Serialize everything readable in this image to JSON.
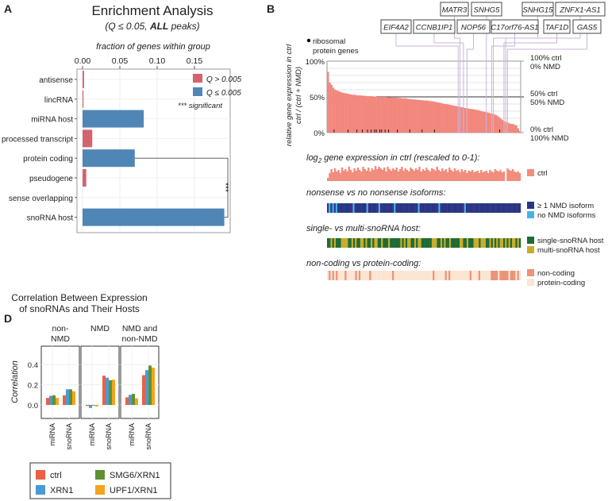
{
  "panel_labels": {
    "a": "A",
    "b": "B",
    "d": "D"
  },
  "chart_data": [
    {
      "type": "bar",
      "orientation": "horizontal",
      "title": "Enrichment Analysis",
      "subtitle_pre": "(Q ≤ 0.05, ",
      "subtitle_bold": "ALL",
      "subtitle_post": " peaks)",
      "xlabel": "fraction of genes within group",
      "xticks": [
        "0.00",
        "0.05",
        "0.10",
        "0.15"
      ],
      "xtick_values": [
        0,
        0.05,
        0.1,
        0.15
      ],
      "xlim": [
        -0.002,
        0.196
      ],
      "categories": [
        "antisense",
        "lincRNA",
        "miRNA host",
        "processed transcript",
        "protein coding",
        "pseudogene",
        "sense overlapping",
        "snoRNA host"
      ],
      "values": [
        0.002,
        0.001,
        0.082,
        0.013,
        0.07,
        0.005,
        0.0,
        0.19
      ],
      "groups": [
        "gt",
        "gt",
        "le",
        "gt",
        "le",
        "gt",
        "le",
        "le"
      ],
      "legend": [
        {
          "key": "gt",
          "label": "Q > 0.005",
          "color": "#d4636d"
        },
        {
          "key": "le",
          "label": "Q ≤ 0.005",
          "color": "#4f86b6"
        }
      ],
      "legend_note": "*** significant",
      "legend_position": "top-right",
      "annotation": {
        "from": "protein coding",
        "to": "snoRNA host",
        "label": "***"
      }
    },
    {
      "type": "bar",
      "ylabel_line1": "relative gene expression in ctrl",
      "ylabel_line2": "ctrl / (ctrl + NMD)",
      "yticks": [
        "100%",
        "50%",
        "0%"
      ],
      "right_labels": [
        [
          "100% ctrl",
          "0% NMD"
        ],
        [
          "50% ctrl",
          "50% NMD"
        ],
        [
          "0% ctrl",
          "100% NMD"
        ]
      ],
      "ylim": [
        0,
        1
      ],
      "ribosomal_note_line1": "ribosomal",
      "ribosomal_note_line2": "protein genes",
      "values": [
        0.85,
        0.7,
        0.67,
        0.63,
        0.6,
        0.59,
        0.58,
        0.57,
        0.56,
        0.555,
        0.55,
        0.545,
        0.54,
        0.535,
        0.53,
        0.53,
        0.525,
        0.52,
        0.52,
        0.52,
        0.515,
        0.515,
        0.51,
        0.51,
        0.51,
        0.51,
        0.505,
        0.505,
        0.5,
        0.5,
        0.5,
        0.5,
        0.5,
        0.5,
        0.495,
        0.495,
        0.49,
        0.49,
        0.49,
        0.49,
        0.485,
        0.485,
        0.48,
        0.48,
        0.48,
        0.475,
        0.47,
        0.47,
        0.465,
        0.465,
        0.46,
        0.46,
        0.455,
        0.455,
        0.45,
        0.45,
        0.45,
        0.445,
        0.44,
        0.44,
        0.435,
        0.43,
        0.425,
        0.42,
        0.415,
        0.41,
        0.4,
        0.4,
        0.395,
        0.39,
        0.385,
        0.38,
        0.375,
        0.37,
        0.365,
        0.36,
        0.355,
        0.35,
        0.345,
        0.34,
        0.335,
        0.33,
        0.33,
        0.325,
        0.32,
        0.315,
        0.31,
        0.3,
        0.295,
        0.29,
        0.285,
        0.28,
        0.27,
        0.265,
        0.26,
        0.25,
        0.24,
        0.22,
        0.2,
        0.18,
        0.16,
        0.15,
        0.14,
        0.13,
        0.12,
        0.12,
        0.11,
        0.1,
        0.06,
        0.02
      ],
      "ribosomal_positions": [
        4,
        12,
        17,
        20,
        23,
        25,
        27,
        28,
        30,
        31,
        33,
        35,
        40,
        47,
        54,
        61,
        98
      ],
      "highlighted_genes": [
        {
          "name": "MATR3",
          "index": 75,
          "row": 1
        },
        {
          "name": "SNHG5",
          "index": 90,
          "row": 1
        },
        {
          "name": "SNHG15",
          "index": 94,
          "row": 1
        },
        {
          "name": "ZNFX1-AS1",
          "index": 101,
          "row": 1
        },
        {
          "name": "EIF4A2",
          "index": 74,
          "row": 2
        },
        {
          "name": "CCNB1IP1",
          "index": 77,
          "row": 2
        },
        {
          "name": "NOP56",
          "index": 79,
          "row": 2
        },
        {
          "name": "C17orf76-AS1",
          "index": 93,
          "row": 2
        },
        {
          "name": "TAF1D",
          "index": 100,
          "row": 2
        },
        {
          "name": "GAS5",
          "index": 102,
          "row": 2
        }
      ],
      "tracks": {
        "expression": {
          "title_pre": "log",
          "title_sub": "2",
          "title_post": " gene expression in ctrl (rescaled to 0-1):",
          "legend": [
            {
              "label": "ctrl",
              "color": "#f28c7c"
            }
          ],
          "values": [
            0.2,
            0.5,
            0.75,
            0.55,
            0.8,
            0.6,
            0.7,
            0.5,
            0.85,
            0.65,
            0.75,
            0.6,
            0.9,
            0.7,
            0.55,
            0.8,
            0.65,
            0.85,
            0.7,
            0.6,
            0.9,
            0.75,
            0.65,
            0.85,
            0.6,
            0.8,
            0.7,
            0.95,
            0.75,
            0.9,
            0.8,
            0.7,
            0.85,
            0.6,
            0.9,
            0.75,
            0.65,
            0.8,
            0.7,
            0.85,
            0.6,
            0.75,
            0.9,
            0.65,
            0.8,
            0.7,
            0.6,
            0.85,
            0.75,
            0.65,
            0.8,
            0.7,
            0.9,
            0.6,
            0.75,
            0.65,
            0.85,
            0.7,
            0.6,
            0.8,
            0.75,
            0.65,
            0.9,
            0.7,
            0.6,
            0.8,
            0.65,
            0.75,
            0.55,
            0.85,
            0.7,
            0.6,
            0.8,
            0.65,
            0.7,
            0.55,
            0.75,
            0.6,
            0.7,
            0.5,
            0.65,
            0.6,
            0.7,
            0.55,
            0.6,
            0.65,
            0.5,
            0.7,
            0.55,
            0.6,
            0.65,
            0.5,
            0.7,
            0.6,
            0.55,
            0.75,
            0.65,
            0.6,
            0.7,
            0.55,
            0.6,
            0.0,
            0.8,
            0.7,
            0.65,
            0.75,
            0.6,
            0.55,
            0.6,
            0.5
          ]
        },
        "nonsense": {
          "title": "nonsense vs no nonsense isoforms:",
          "legend": [
            {
              "key": "N",
              "label": "≥ 1 NMD isoform",
              "color": "#2b3585"
            },
            {
              "key": "n",
              "label": "no NMD isoforms",
              "color": "#45b5e8"
            }
          ],
          "pattern": "NnNnNnNNNNNNNNNnNNNNNNNnNNNNNNnNNNNNNNNnNNNNNNNNNNNNNnNNNNNNNNNNNnNNNNNNNNNNNNNNnNNNNNNNNNNNNNNNNNNNNNNNNNNNNNNNN"
        },
        "snorna": {
          "title": "single- vs multi-snoRNA host:",
          "legend": [
            {
              "key": "S",
              "label": "single-snoRNA host",
              "color": "#1d6b36"
            },
            {
              "key": "M",
              "label": "multi-snoRNA host",
              "color": "#c9ac2a"
            }
          ],
          "pattern": "SSMSMSSSMMMMSSMSMSSMMSMSSMSMMSSMSSSMSSSSSSMSMSMMSSMSMMSSSSSSMMMSSMSMSSMSSSSSMMSSMSSSMMMSMMMSSMSMSMSMMSMSMSMMSMS"
        },
        "coding": {
          "title": "non-coding vs protein-coding:",
          "legend": [
            {
              "key": "c",
              "label": "non-coding",
              "color": "#ec9277"
            },
            {
              "key": "p",
              "label": "protein-coding",
              "color": "#fbe5d3"
            }
          ],
          "pattern": "pcpcpcppppcpppppcpcpppppcppppppppppppcppppppppppppppppppppppcppppppcpcpppppppppppcppppcppppppccccpcccccpcccpcp"
        }
      }
    },
    {
      "type": "bar",
      "title_line1": "Correlation Between Expression",
      "title_line2": "of snoRNAs and Their Hosts",
      "ylabel": "Correlation",
      "yticks": [
        "0.4",
        "0.2",
        "0.0"
      ],
      "ytick_values": [
        0.4,
        0.2,
        0.0
      ],
      "ylim": [
        -0.13,
        0.56
      ],
      "facets": [
        {
          "label_line1": "non-",
          "label_line2": "NMD",
          "categories": [
            "miRNA",
            "snoRNA"
          ],
          "series": [
            [
              0.07,
              0.09,
              0.095,
              0.07
            ],
            [
              0.095,
              0.155,
              0.155,
              0.135
            ]
          ]
        },
        {
          "label_line1": "NMD",
          "label_line2": "",
          "categories": [
            "miRNA",
            "snoRNA"
          ],
          "series": [
            [
              -0.01,
              -0.03,
              0.0,
              -0.015
            ],
            [
              0.29,
              0.27,
              0.245,
              0.25
            ]
          ]
        },
        {
          "label_line1": "NMD and",
          "label_line2": "non-NMD",
          "categories": [
            "miRNA",
            "snoRNA"
          ],
          "series": [
            [
              0.075,
              0.1,
              0.11,
              0.065
            ],
            [
              0.295,
              0.345,
              0.39,
              0.37
            ]
          ]
        }
      ],
      "legend": [
        {
          "label": "ctrl",
          "color": "#ec5f46"
        },
        {
          "label": "XRN1",
          "color": "#4b9ad6"
        },
        {
          "label": "SMG6/XRN1",
          "color": "#5d9131"
        },
        {
          "label": "UPF1/XRN1",
          "color": "#f6a31c"
        }
      ],
      "legend_position": "bottom"
    }
  ]
}
